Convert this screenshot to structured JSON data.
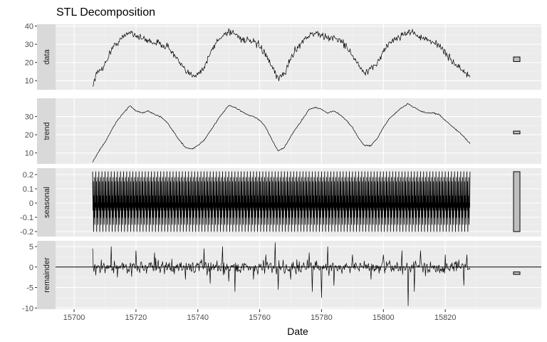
{
  "chart_data": {
    "type": "line",
    "title": "STL Decomposition",
    "xlabel": "Date",
    "x_range": [
      15706,
      15828
    ],
    "x_limits": [
      15694,
      15840
    ],
    "x_ticks": [
      15700,
      15720,
      15740,
      15760,
      15780,
      15800,
      15820
    ],
    "grid": true,
    "seasonal_period": 1,
    "panels": [
      {
        "name": "data",
        "ylim": [
          5,
          41
        ],
        "y_ticks": [
          10,
          20,
          30,
          40
        ],
        "range_bar": [
          20.5,
          23.0
        ],
        "noise": 1.4,
        "points": [
          [
            15706,
            7
          ],
          [
            15707,
            13
          ],
          [
            15710,
            19
          ],
          [
            15712,
            27
          ],
          [
            15714,
            31
          ],
          [
            15716,
            34
          ],
          [
            15718,
            37
          ],
          [
            15720,
            35
          ],
          [
            15722,
            33
          ],
          [
            15724,
            32
          ],
          [
            15726,
            31
          ],
          [
            15728,
            30
          ],
          [
            15730,
            29
          ],
          [
            15732,
            25
          ],
          [
            15734,
            20
          ],
          [
            15736,
            15
          ],
          [
            15738,
            13
          ],
          [
            15740,
            14
          ],
          [
            15742,
            17
          ],
          [
            15744,
            25
          ],
          [
            15746,
            31
          ],
          [
            15748,
            35
          ],
          [
            15750,
            37
          ],
          [
            15752,
            36
          ],
          [
            15754,
            33
          ],
          [
            15756,
            32
          ],
          [
            15758,
            31
          ],
          [
            15760,
            29
          ],
          [
            15762,
            24
          ],
          [
            15764,
            17
          ],
          [
            15766,
            11
          ],
          [
            15768,
            14
          ],
          [
            15770,
            22
          ],
          [
            15772,
            28
          ],
          [
            15774,
            32
          ],
          [
            15776,
            35
          ],
          [
            15778,
            36
          ],
          [
            15780,
            35
          ],
          [
            15782,
            33
          ],
          [
            15784,
            34
          ],
          [
            15786,
            32
          ],
          [
            15788,
            29
          ],
          [
            15790,
            24
          ],
          [
            15792,
            18
          ],
          [
            15794,
            14
          ],
          [
            15796,
            16
          ],
          [
            15798,
            20
          ],
          [
            15800,
            26
          ],
          [
            15802,
            31
          ],
          [
            15804,
            33
          ],
          [
            15806,
            35
          ],
          [
            15808,
            37
          ],
          [
            15810,
            36
          ],
          [
            15812,
            34
          ],
          [
            15814,
            32
          ],
          [
            15816,
            31
          ],
          [
            15818,
            30
          ],
          [
            15820,
            25
          ],
          [
            15822,
            21
          ],
          [
            15824,
            18
          ],
          [
            15826,
            15
          ],
          [
            15828,
            12
          ]
        ]
      },
      {
        "name": "trend",
        "ylim": [
          4,
          40
        ],
        "y_ticks": [
          10,
          20,
          30
        ],
        "range_bar": [
          20.5,
          22.0
        ],
        "noise": 0.25,
        "points": [
          [
            15706,
            5
          ],
          [
            15708,
            11
          ],
          [
            15710,
            16
          ],
          [
            15712,
            22
          ],
          [
            15714,
            28
          ],
          [
            15716,
            32
          ],
          [
            15718,
            36
          ],
          [
            15720,
            33
          ],
          [
            15722,
            32
          ],
          [
            15724,
            33
          ],
          [
            15726,
            31
          ],
          [
            15728,
            30
          ],
          [
            15730,
            27
          ],
          [
            15732,
            22
          ],
          [
            15734,
            17
          ],
          [
            15736,
            13
          ],
          [
            15738,
            12
          ],
          [
            15740,
            14
          ],
          [
            15742,
            17
          ],
          [
            15744,
            22
          ],
          [
            15746,
            27
          ],
          [
            15748,
            32
          ],
          [
            15750,
            36
          ],
          [
            15752,
            35
          ],
          [
            15754,
            33
          ],
          [
            15756,
            31
          ],
          [
            15758,
            30
          ],
          [
            15760,
            28
          ],
          [
            15762,
            24
          ],
          [
            15764,
            17
          ],
          [
            15766,
            11
          ],
          [
            15768,
            13
          ],
          [
            15770,
            19
          ],
          [
            15772,
            24
          ],
          [
            15774,
            29
          ],
          [
            15776,
            34
          ],
          [
            15778,
            35
          ],
          [
            15780,
            34
          ],
          [
            15782,
            32
          ],
          [
            15784,
            33
          ],
          [
            15786,
            31
          ],
          [
            15788,
            28
          ],
          [
            15790,
            24
          ],
          [
            15792,
            18
          ],
          [
            15794,
            14
          ],
          [
            15796,
            14
          ],
          [
            15798,
            18
          ],
          [
            15800,
            24
          ],
          [
            15802,
            29
          ],
          [
            15804,
            32
          ],
          [
            15806,
            35
          ],
          [
            15808,
            37
          ],
          [
            15810,
            35
          ],
          [
            15812,
            33
          ],
          [
            15814,
            32
          ],
          [
            15816,
            32
          ],
          [
            15818,
            31
          ],
          [
            15820,
            28
          ],
          [
            15822,
            25
          ],
          [
            15824,
            22
          ],
          [
            15826,
            19
          ],
          [
            15828,
            15
          ]
        ]
      },
      {
        "name": "seasonal",
        "ylim": [
          -0.235,
          0.245
        ],
        "y_ticks": [
          -0.2,
          -0.1,
          0.0,
          0.1,
          0.2
        ],
        "range_bar": [
          -0.2,
          0.22
        ],
        "cycle": [
          0.22,
          -0.05,
          0.15,
          -0.2,
          0.05,
          -0.1,
          0.18,
          -0.15,
          0.0,
          -0.03
        ]
      },
      {
        "name": "remainder",
        "ylim": [
          -10.3,
          6.4
        ],
        "y_ticks": [
          -10,
          -5,
          0,
          5
        ],
        "zero_line": true,
        "range_bar": [
          -1.8,
          -1.2
        ],
        "noise": 1.1,
        "spikes": [
          [
            15706,
            4.5
          ],
          [
            15707,
            -2.0
          ],
          [
            15712,
            5.0
          ],
          [
            15714,
            -2.5
          ],
          [
            15720,
            4.0
          ],
          [
            15726,
            3.5
          ],
          [
            15736,
            -3.0
          ],
          [
            15742,
            4.5
          ],
          [
            15744,
            -4.0
          ],
          [
            15748,
            5.0
          ],
          [
            15750,
            -3.5
          ],
          [
            15752,
            -6.0
          ],
          [
            15758,
            -3.0
          ],
          [
            15762,
            3.0
          ],
          [
            15765,
            6.0
          ],
          [
            15766,
            -5.5
          ],
          [
            15770,
            -3.0
          ],
          [
            15776,
            3.5
          ],
          [
            15777,
            -6.0
          ],
          [
            15780,
            -7.5
          ],
          [
            15782,
            5.0
          ],
          [
            15784,
            -4.5
          ],
          [
            15790,
            3.0
          ],
          [
            15796,
            -3.0
          ],
          [
            15800,
            3.0
          ],
          [
            15806,
            4.0
          ],
          [
            15808,
            -9.5
          ],
          [
            15810,
            -6.0
          ],
          [
            15812,
            4.0
          ],
          [
            15820,
            3.0
          ],
          [
            15826,
            -4.5
          ],
          [
            15827,
            3.0
          ]
        ]
      }
    ]
  }
}
